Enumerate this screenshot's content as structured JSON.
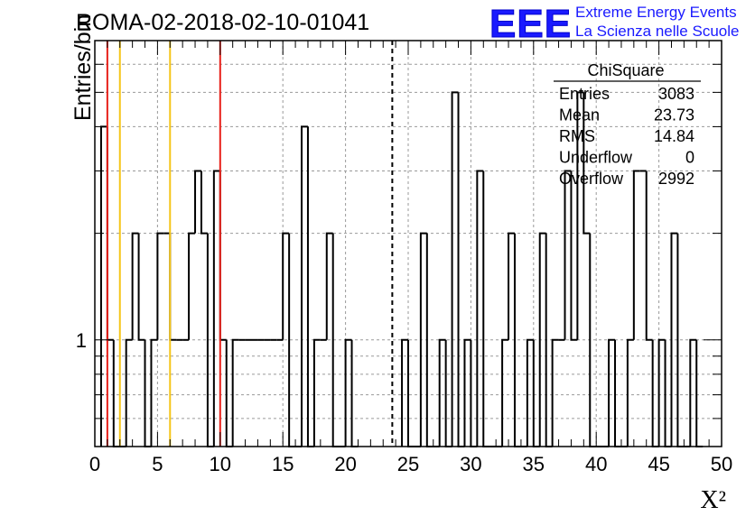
{
  "title": "ROMA-02-2018-02-10-01041",
  "logo": {
    "mark": "EEE",
    "line1": "Extreme Energy Events",
    "line2": "La Scienza nelle Scuole"
  },
  "colors": {
    "histogram": "#000000",
    "red_lines": "#e8201a",
    "yellow_lines": "#f5c518",
    "grid": "#9a9a9a",
    "logo": "#1a1aff"
  },
  "chart_data": {
    "type": "bar",
    "style": "step-histogram",
    "xlabel": "X²",
    "ylabel": "Entries/bin",
    "xlim": [
      0,
      50
    ],
    "y_scale": "log",
    "ylim": [
      0.5,
      7
    ],
    "x_ticks": [
      "0",
      "5",
      "10",
      "15",
      "20",
      "25",
      "30",
      "35",
      "40",
      "45",
      "50"
    ],
    "y_tick_labels": [
      "1"
    ],
    "grid": true,
    "bin_width": 0.5,
    "bins": [
      [
        0.5,
        4
      ],
      [
        1.0,
        1
      ],
      [
        1.5,
        0
      ],
      [
        2.0,
        0
      ],
      [
        2.5,
        1
      ],
      [
        3.0,
        2
      ],
      [
        3.5,
        1
      ],
      [
        4.0,
        0
      ],
      [
        4.5,
        1
      ],
      [
        5.0,
        2
      ],
      [
        5.5,
        2
      ],
      [
        6.0,
        1
      ],
      [
        6.5,
        1
      ],
      [
        7.0,
        1
      ],
      [
        7.5,
        2
      ],
      [
        8.0,
        3
      ],
      [
        8.5,
        2
      ],
      [
        9.0,
        0
      ],
      [
        9.5,
        3
      ],
      [
        10.0,
        1
      ],
      [
        10.5,
        0
      ],
      [
        11.0,
        1
      ],
      [
        11.5,
        1
      ],
      [
        12.0,
        1
      ],
      [
        12.5,
        1
      ],
      [
        13.0,
        1
      ],
      [
        13.5,
        1
      ],
      [
        14.0,
        1
      ],
      [
        14.5,
        1
      ],
      [
        15.0,
        2
      ],
      [
        15.5,
        0
      ],
      [
        16.0,
        0
      ],
      [
        16.5,
        4
      ],
      [
        17.0,
        0
      ],
      [
        17.5,
        1
      ],
      [
        18.0,
        1
      ],
      [
        18.5,
        2
      ],
      [
        19.0,
        0
      ],
      [
        19.5,
        0
      ],
      [
        20.0,
        1
      ],
      [
        20.5,
        0
      ],
      [
        24.5,
        1
      ],
      [
        25.0,
        0
      ],
      [
        25.5,
        0
      ],
      [
        26.0,
        2
      ],
      [
        26.5,
        0
      ],
      [
        27.0,
        0
      ],
      [
        27.5,
        1
      ],
      [
        28.0,
        0
      ],
      [
        28.5,
        5
      ],
      [
        29.0,
        0
      ],
      [
        29.5,
        1
      ],
      [
        30.0,
        0
      ],
      [
        30.5,
        3
      ],
      [
        31.0,
        0
      ],
      [
        31.5,
        0
      ],
      [
        32.0,
        0
      ],
      [
        32.5,
        1
      ],
      [
        33.0,
        2
      ],
      [
        33.5,
        0
      ],
      [
        34.0,
        0
      ],
      [
        34.5,
        1
      ],
      [
        35.0,
        0
      ],
      [
        35.5,
        2
      ],
      [
        36.0,
        0
      ],
      [
        36.5,
        1
      ],
      [
        37.0,
        1
      ],
      [
        37.5,
        3
      ],
      [
        38.0,
        1
      ],
      [
        38.5,
        5
      ],
      [
        39.0,
        2
      ],
      [
        39.5,
        0
      ],
      [
        40.0,
        0
      ],
      [
        40.5,
        0
      ],
      [
        41.0,
        1
      ],
      [
        41.5,
        0
      ],
      [
        42.0,
        0
      ],
      [
        42.5,
        1
      ],
      [
        43.0,
        3
      ],
      [
        43.5,
        3
      ],
      [
        44.0,
        1
      ],
      [
        44.5,
        0
      ],
      [
        45.0,
        1
      ],
      [
        45.5,
        0
      ],
      [
        46.0,
        2
      ],
      [
        46.5,
        0
      ],
      [
        47.0,
        0
      ],
      [
        47.5,
        1
      ],
      [
        48.0,
        0
      ]
    ],
    "vertical_lines": [
      {
        "x": 1,
        "color": "red",
        "style": "solid"
      },
      {
        "x": 10,
        "color": "red",
        "style": "solid"
      },
      {
        "x": 2,
        "color": "yellow",
        "style": "solid"
      },
      {
        "x": 6,
        "color": "yellow",
        "style": "solid"
      },
      {
        "x": 23.73,
        "color": "black",
        "style": "dashed"
      }
    ],
    "stats_box": {
      "name": "ChiSquare",
      "rows": [
        {
          "label": "Entries",
          "value": "3083"
        },
        {
          "label": "Mean",
          "value": "23.73"
        },
        {
          "label": "RMS",
          "value": "14.84"
        },
        {
          "label": "Underflow",
          "value": "0"
        },
        {
          "label": "Overflow",
          "value": "2992"
        }
      ]
    }
  }
}
